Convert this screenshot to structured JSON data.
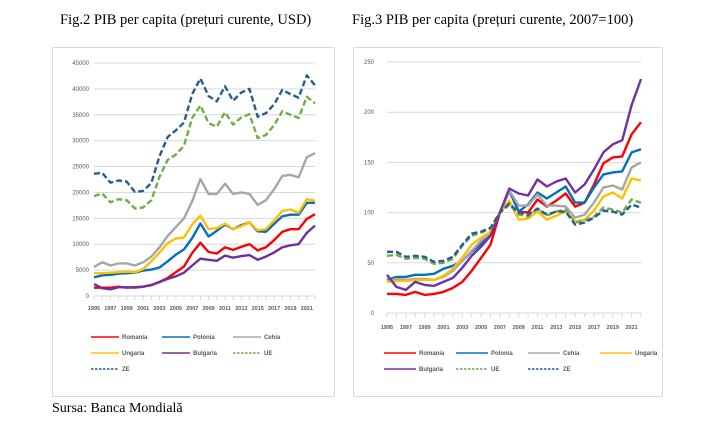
{
  "source": "Sursa: Banca Mondială",
  "chart_data": [
    {
      "type": "line",
      "title": "Fig.2 PIB per capita (prețuri curente, USD)",
      "xlabel": "",
      "ylabel": "",
      "ylim": [
        0,
        45000
      ],
      "yticks": [
        0,
        5000,
        10000,
        15000,
        20000,
        25000,
        30000,
        35000,
        40000,
        45000
      ],
      "x": [
        1995,
        1996,
        1997,
        1998,
        1999,
        2000,
        2001,
        2002,
        2003,
        2004,
        2005,
        2006,
        2007,
        2008,
        2009,
        2010,
        2011,
        2012,
        2013,
        2014,
        2015,
        2016,
        2017,
        2018,
        2019,
        2020,
        2021,
        2022
      ],
      "xtick_labels": [
        "1995",
        "1997",
        "1999",
        "2001",
        "2003",
        "2005",
        "2007",
        "2009",
        "2011",
        "2013",
        "2015",
        "2017",
        "2019",
        "2021"
      ],
      "grid": true,
      "legend": "bottom",
      "series": [
        {
          "name": "Romania",
          "color": "#ff0000",
          "dash": false,
          "values": [
            1600,
            1600,
            1600,
            1800,
            1600,
            1700,
            1800,
            2100,
            2700,
            3500,
            4600,
            5700,
            8300,
            10300,
            8500,
            8200,
            9400,
            8900,
            9500,
            10000,
            8800,
            9400,
            10800,
            12400,
            12900,
            12900,
            14900,
            15800
          ]
        },
        {
          "name": "Polonia",
          "color": "#0070c0",
          "dash": false,
          "values": [
            3600,
            4000,
            4100,
            4300,
            4400,
            4500,
            4900,
            5100,
            5500,
            6700,
            8000,
            9000,
            11200,
            14000,
            11500,
            12600,
            13800,
            12900,
            13700,
            14200,
            12500,
            12400,
            13900,
            15400,
            15700,
            15700,
            18000,
            18000
          ]
        },
        {
          "name": "Cehia",
          "color": "#a6a6a6",
          "dash": false,
          "values": [
            5600,
            6500,
            5900,
            6300,
            6300,
            5900,
            6500,
            7600,
            9400,
            11600,
            13300,
            15000,
            18300,
            22600,
            19700,
            19700,
            21700,
            19700,
            20000,
            19700,
            17600,
            18500,
            20600,
            23200,
            23400,
            22900,
            26800,
            27600
          ]
        },
        {
          "name": "Ungaria",
          "color": "#ffc000",
          "dash": false,
          "values": [
            4400,
            4400,
            4500,
            4600,
            4700,
            4600,
            5200,
            6700,
            8400,
            10200,
            11100,
            11300,
            13800,
            15500,
            12900,
            13100,
            14000,
            12900,
            13500,
            14200,
            12700,
            12900,
            14600,
            16400,
            16700,
            16100,
            18700,
            18400
          ]
        },
        {
          "name": "Bulgaria",
          "color": "#7030a0",
          "dash": false,
          "values": [
            2300,
            1500,
            1300,
            1700,
            1700,
            1600,
            1800,
            2100,
            2700,
            3300,
            3800,
            4500,
            5900,
            7200,
            7000,
            6800,
            7800,
            7400,
            7700,
            7900,
            7000,
            7600,
            8400,
            9400,
            9800,
            10000,
            12200,
            13600
          ]
        },
        {
          "name": "UE",
          "color": "#70ad47",
          "dash": true,
          "values": [
            19300,
            19800,
            18100,
            18700,
            18500,
            16900,
            17100,
            18500,
            23000,
            26300,
            27300,
            29000,
            34400,
            36800,
            33400,
            32700,
            35500,
            33100,
            34500,
            35100,
            30500,
            31100,
            33000,
            35700,
            35000,
            34400,
            38500,
            37200
          ]
        },
        {
          "name": "ZE",
          "color": "#255e91",
          "dash": true,
          "values": [
            23600,
            23800,
            21900,
            22300,
            22100,
            20100,
            20300,
            21800,
            27000,
            30700,
            32000,
            33500,
            39000,
            42000,
            38600,
            37600,
            40500,
            37700,
            39300,
            40000,
            34600,
            35300,
            37000,
            39800,
            39000,
            38300,
            42600,
            40700
          ]
        }
      ]
    },
    {
      "type": "line",
      "title": "Fig.3 PIB per capita (prețuri curente, 2007=100)",
      "xlabel": "",
      "ylabel": "",
      "ylim": [
        0,
        250
      ],
      "yticks": [
        0,
        50,
        100,
        150,
        200,
        250
      ],
      "x": [
        1995,
        1996,
        1997,
        1998,
        1999,
        2000,
        2001,
        2002,
        2003,
        2004,
        2005,
        2006,
        2007,
        2008,
        2009,
        2010,
        2011,
        2012,
        2013,
        2014,
        2015,
        2016,
        2017,
        2018,
        2019,
        2020,
        2021,
        2022
      ],
      "xtick_labels": [
        "1995",
        "1997",
        "1999",
        "2001",
        "2003",
        "2005",
        "2007",
        "2009",
        "2011",
        "2013",
        "2015",
        "2017",
        "2019",
        "2021"
      ],
      "grid": true,
      "legend": "bottom",
      "series": [
        {
          "name": "Romania",
          "color": "#ff0000",
          "dash": false,
          "values": [
            19,
            19,
            18,
            21,
            18,
            19,
            21,
            25,
            31,
            42,
            55,
            68,
            100,
            122,
            101,
            100,
            113,
            106,
            112,
            119,
            106,
            110,
            128,
            149,
            155,
            156,
            178,
            190
          ]
        },
        {
          "name": "Polonia",
          "color": "#0070c0",
          "dash": false,
          "values": [
            33,
            36,
            36,
            38,
            38,
            39,
            44,
            47,
            52,
            61,
            69,
            78,
            100,
            122,
            101,
            108,
            120,
            114,
            120,
            126,
            110,
            110,
            125,
            138,
            140,
            141,
            160,
            163
          ]
        },
        {
          "name": "Cehia",
          "color": "#a6a6a6",
          "dash": false,
          "values": [
            32,
            34,
            33,
            34,
            34,
            33,
            36,
            42,
            52,
            62,
            72,
            80,
            100,
            122,
            107,
            107,
            118,
            107,
            107,
            106,
            95,
            98,
            110,
            125,
            127,
            123,
            145,
            150
          ]
        },
        {
          "name": "Ungaria",
          "color": "#ffc000",
          "dash": false,
          "values": [
            31,
            32,
            32,
            33,
            33,
            33,
            37,
            44,
            55,
            68,
            75,
            81,
            100,
            112,
            93,
            94,
            101,
            93,
            97,
            101,
            91,
            93,
            102,
            116,
            120,
            114,
            134,
            132
          ]
        },
        {
          "name": "Bulgaria",
          "color": "#7030a0",
          "dash": false,
          "values": [
            38,
            26,
            23,
            31,
            28,
            27,
            31,
            35,
            45,
            57,
            66,
            77,
            100,
            124,
            119,
            117,
            133,
            126,
            131,
            134,
            120,
            128,
            143,
            160,
            168,
            172,
            207,
            233
          ]
        },
        {
          "name": "UE",
          "color": "#70ad47",
          "dash": true,
          "values": [
            57,
            58,
            54,
            55,
            54,
            49,
            50,
            54,
            67,
            77,
            80,
            84,
            100,
            108,
            98,
            96,
            104,
            97,
            101,
            103,
            90,
            92,
            96,
            105,
            103,
            100,
            113,
            110
          ]
        },
        {
          "name": "ZE",
          "color": "#255e91",
          "dash": true,
          "values": [
            61,
            61,
            56,
            57,
            56,
            51,
            52,
            56,
            68,
            79,
            81,
            85,
            100,
            109,
            100,
            98,
            104,
            98,
            101,
            101,
            88,
            90,
            95,
            102,
            101,
            98,
            108,
            105
          ]
        }
      ]
    }
  ]
}
